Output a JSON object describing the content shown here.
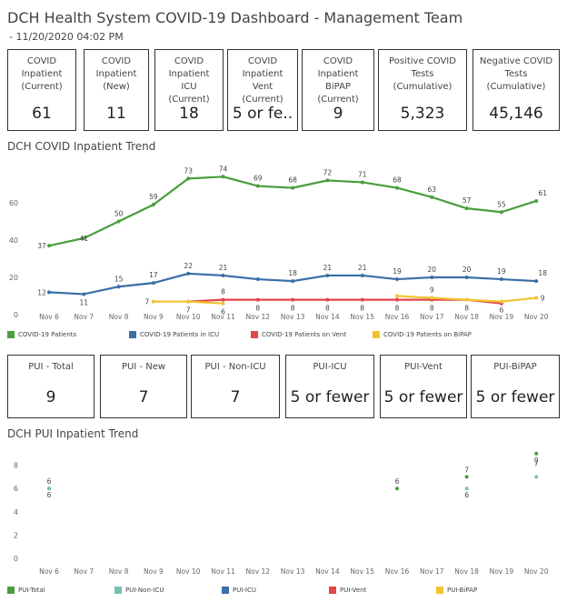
{
  "header": {
    "title": "DCH Health System COVID-19 Dashboard - Management Team",
    "subtitle": "- 11/20/2020 04:02 PM"
  },
  "kpis_top": [
    {
      "label": "COVID Inpatient (Current)",
      "value": "61"
    },
    {
      "label": "COVID Inpatient (New)",
      "value": "11"
    },
    {
      "label": "COVID Inpatient ICU (Current)",
      "value": "18"
    },
    {
      "label": "COVID Inpatient Vent (Current)",
      "value": "5 or fe.."
    },
    {
      "label": "COVID Inpatient BiPAP (Current)",
      "value": "9"
    },
    {
      "label": "Positive COVID Tests (Cumulative)",
      "value": "5,323"
    },
    {
      "label": "Negative COVID Tests (Cumulative)",
      "value": "45,146"
    }
  ],
  "kpis_pui": [
    {
      "label": "PUI - Total",
      "value": "9"
    },
    {
      "label": "PUI - New",
      "value": "7"
    },
    {
      "label": "PUI - Non-ICU",
      "value": "7"
    },
    {
      "label": "PUI-ICU",
      "value": "5 or fewer"
    },
    {
      "label": "PUI-Vent",
      "value": "5 or fewer"
    },
    {
      "label": "PUI-BiPAP",
      "value": "5 or fewer"
    }
  ],
  "chart_data": [
    {
      "type": "line",
      "title": "DCH COVID Inpatient Trend",
      "categories": [
        "Nov 6",
        "Nov 7",
        "Nov 8",
        "Nov 9",
        "Nov 10",
        "Nov 11",
        "Nov 12",
        "Nov 13",
        "Nov 14",
        "Nov 15",
        "Nov 16",
        "Nov 17",
        "Nov 18",
        "Nov 19",
        "Nov 20"
      ],
      "yticks": [
        0,
        20,
        40,
        60
      ],
      "ylim": [
        0,
        80
      ],
      "grid": false,
      "legend_position": "bottom",
      "series": [
        {
          "name": "COVID-19 Patients",
          "color": "#4a9e3e",
          "values": [
            37,
            41,
            50,
            59,
            73,
            74,
            69,
            68,
            72,
            71,
            68,
            63,
            57,
            55,
            61
          ],
          "labels": [
            "37",
            "41",
            "50",
            "59",
            "73",
            "74",
            "69",
            "68",
            "72",
            "71",
            "68",
            "63",
            "57",
            "55",
            "61"
          ]
        },
        {
          "name": "COVID-19 Patients in ICU",
          "color": "#3a6fa8",
          "values": [
            12,
            11,
            15,
            17,
            22,
            21,
            19,
            18,
            21,
            21,
            19,
            20,
            20,
            19,
            18
          ],
          "labels": [
            "12",
            "11",
            "15",
            "17",
            "22",
            "21",
            "",
            "18",
            "21",
            "21",
            "19",
            "20",
            "20",
            "19",
            "18"
          ]
        },
        {
          "name": "COVID-19 Patients on Vent",
          "color": "#e0464a",
          "values": [
            null,
            null,
            null,
            null,
            7,
            8,
            8,
            8,
            8,
            8,
            8,
            8,
            8,
            6,
            null
          ],
          "labels": [
            "",
            "",
            "",
            "",
            "7",
            "8",
            "8",
            "8",
            "8",
            "8",
            "8",
            "8",
            "8",
            "6",
            ""
          ]
        },
        {
          "name": "COVID-19 Patients on BiPAP",
          "color": "#f0c431",
          "values": [
            null,
            null,
            null,
            7,
            7,
            6,
            null,
            null,
            null,
            null,
            10,
            9,
            8,
            7,
            9
          ],
          "labels": [
            "",
            "",
            "",
            "7",
            "",
            "6",
            "",
            "",
            "",
            "",
            "",
            "9",
            "",
            "",
            "9"
          ]
        }
      ]
    },
    {
      "type": "scatter",
      "title": "DCH PUI Inpatient Trend",
      "categories": [
        "Nov 6",
        "Nov 7",
        "Nov 8",
        "Nov 9",
        "Nov 10",
        "Nov 11",
        "Nov 12",
        "Nov 13",
        "Nov 14",
        "Nov 15",
        "Nov 16",
        "Nov 17",
        "Nov 18",
        "Nov 19",
        "Nov 20"
      ],
      "yticks": [
        0,
        2,
        4,
        6,
        8
      ],
      "ylim": [
        0,
        10
      ],
      "grid": false,
      "legend_position": "bottom",
      "series": [
        {
          "name": "PUI-Total",
          "color": "#4a9e3e",
          "points": [
            {
              "x": "Nov 6",
              "y": 6
            },
            {
              "x": "Nov 16",
              "y": 6
            },
            {
              "x": "Nov 18",
              "y": 7
            },
            {
              "x": "Nov 20",
              "y": 9
            }
          ]
        },
        {
          "name": "PUI-Non-ICU",
          "color": "#76c1b4",
          "points": [
            {
              "x": "Nov 6",
              "y": 6
            },
            {
              "x": "Nov 18",
              "y": 6
            },
            {
              "x": "Nov 20",
              "y": 7
            }
          ]
        },
        {
          "name": "PUI-ICU",
          "color": "#3a6fa8",
          "points": []
        },
        {
          "name": "PUI-Vent",
          "color": "#e0464a",
          "points": []
        },
        {
          "name": "PUI-BiPAP",
          "color": "#f0c431",
          "points": []
        }
      ]
    }
  ]
}
